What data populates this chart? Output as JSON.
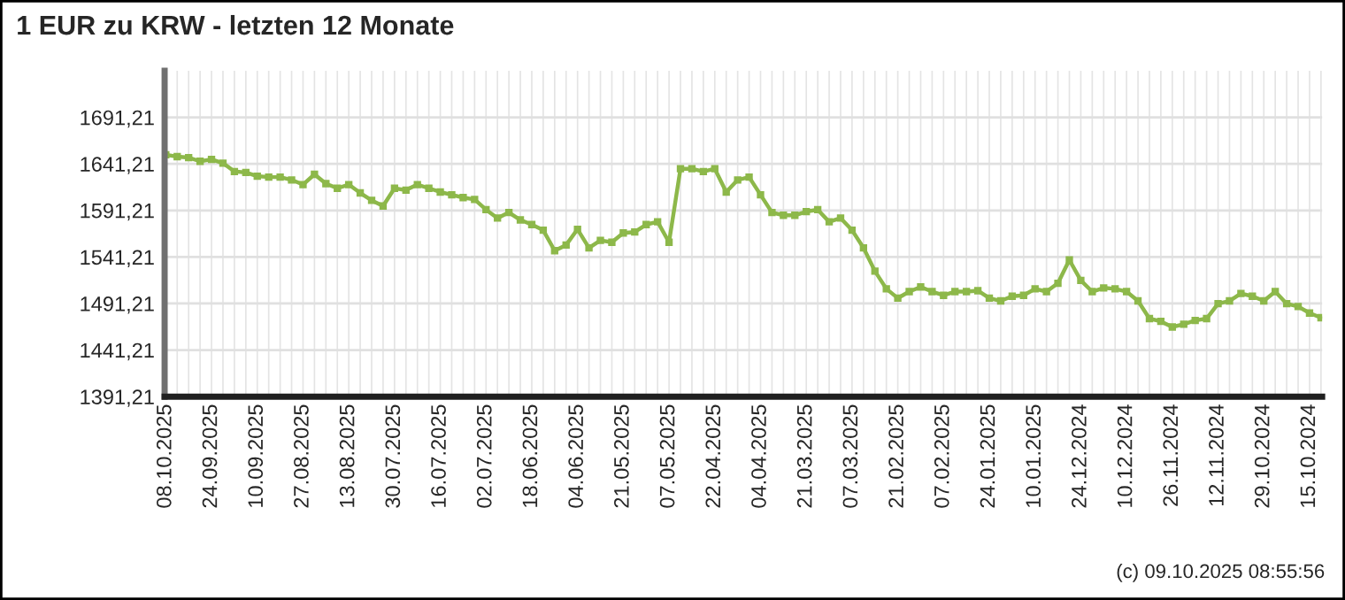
{
  "chart_data": {
    "type": "line",
    "title": "1 EUR zu KRW - letzten 12 Monate",
    "annotations": [
      "(c) 09.10.2025 08:55:56"
    ],
    "categories": [
      "08.10.2025",
      null,
      null,
      null,
      "24.09.2025",
      null,
      null,
      null,
      "10.09.2025",
      null,
      null,
      null,
      "27.08.2025",
      null,
      null,
      null,
      "13.08.2025",
      null,
      null,
      null,
      "30.07.2025",
      null,
      null,
      null,
      "16.07.2025",
      null,
      null,
      null,
      "02.07.2025",
      null,
      null,
      null,
      "18.06.2025",
      null,
      null,
      null,
      "04.06.2025",
      null,
      null,
      null,
      "21.05.2025",
      null,
      null,
      null,
      "07.05.2025",
      null,
      null,
      null,
      "22.04.2025",
      null,
      null,
      null,
      "04.04.2025",
      null,
      null,
      null,
      "21.03.2025",
      null,
      null,
      null,
      "07.03.2025",
      null,
      null,
      null,
      "21.02.2025",
      null,
      null,
      null,
      "07.02.2025",
      null,
      null,
      null,
      "24.01.2025",
      null,
      null,
      null,
      "10.01.2025",
      null,
      null,
      null,
      "24.12.2024",
      null,
      null,
      null,
      "10.12.2024",
      null,
      null,
      null,
      "26.11.2024",
      null,
      null,
      null,
      "12.11.2024",
      null,
      null,
      null,
      "29.10.2024",
      null,
      null,
      null,
      "15.10.2024",
      null
    ],
    "series": [
      {
        "color": "#8db84a",
        "values": [
          1651,
          1649,
          1648,
          1644,
          1646,
          1642,
          1633,
          1632,
          1628,
          1627,
          1627,
          1624,
          1619,
          1630,
          1620,
          1615,
          1619,
          1610,
          1602,
          1596,
          1615,
          1613,
          1619,
          1615,
          1611,
          1608,
          1605,
          1603,
          1592,
          1583,
          1589,
          1581,
          1576,
          1570,
          1548,
          1554,
          1571,
          1551,
          1559,
          1557,
          1567,
          1568,
          1576,
          1579,
          1557,
          1636,
          1636,
          1633,
          1636,
          1611,
          1624,
          1627,
          1608,
          1589,
          1586,
          1586,
          1590,
          1592,
          1579,
          1583,
          1570,
          1551,
          1526,
          1507,
          1497,
          1504,
          1509,
          1504,
          1500,
          1504,
          1504,
          1505,
          1497,
          1494,
          1499,
          1500,
          1507,
          1504,
          1513,
          1538,
          1516,
          1504,
          1508,
          1507,
          1504,
          1494,
          1475,
          1472,
          1466,
          1469,
          1473,
          1475,
          1491,
          1494,
          1502,
          1499,
          1494,
          1504,
          1491,
          1488,
          1481,
          1476
        ]
      }
    ],
    "ylim": [
      1391.21,
      1741.21
    ],
    "yticks": [
      {
        "value": 1391.21,
        "label": "1391,21"
      },
      {
        "value": 1441.21,
        "label": "1441,21"
      },
      {
        "value": 1491.21,
        "label": "1491,21"
      },
      {
        "value": 1541.21,
        "label": "1541,21"
      },
      {
        "value": 1591.21,
        "label": "1591,21"
      },
      {
        "value": 1641.21,
        "label": "1641,21"
      },
      {
        "value": 1691.21,
        "label": "1691,21"
      }
    ],
    "grid": true,
    "marker": "square",
    "line_style": "solid",
    "legend": false
  }
}
